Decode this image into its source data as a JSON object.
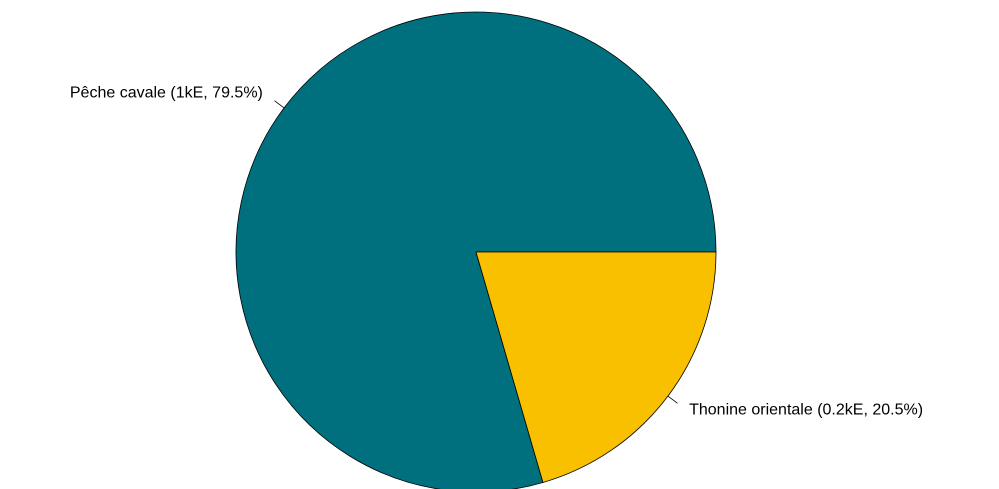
{
  "chart_data": {
    "type": "pie",
    "slices": [
      {
        "label": "Pêche cavale (1kE, 79.5%)",
        "value": 79.5,
        "color": "#006F7E"
      },
      {
        "label": "Thonine orientale (0.2kE, 20.5%)",
        "value": 20.5,
        "color": "#F9C000"
      }
    ],
    "start": "3 o'clock",
    "direction": "counterclockwise",
    "legend": "none"
  }
}
